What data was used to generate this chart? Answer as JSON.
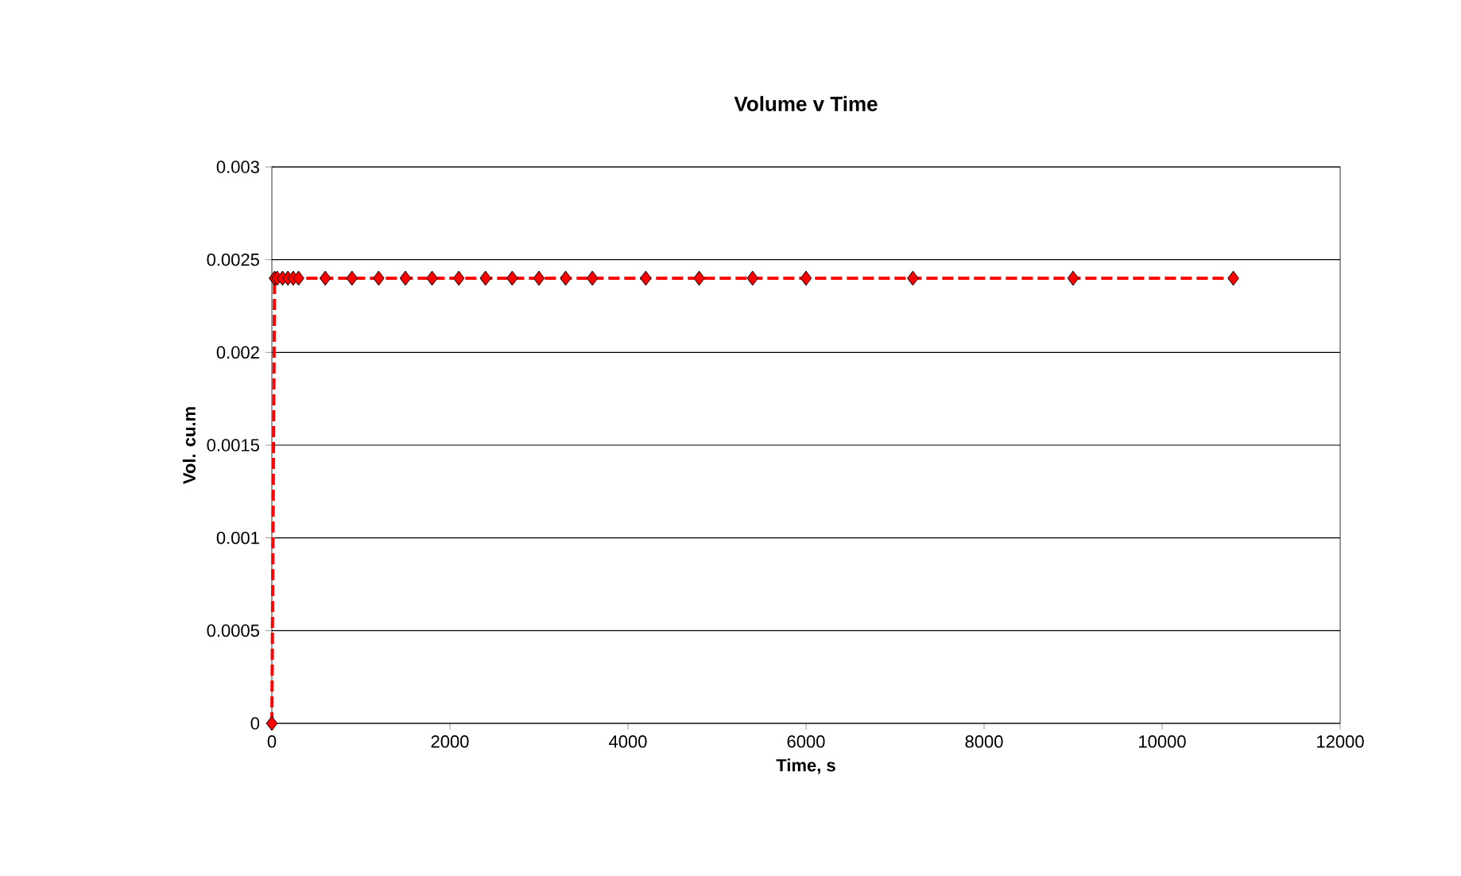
{
  "chart_data": {
    "type": "line",
    "title": "Volume v Time",
    "xlabel": "Time, s",
    "ylabel": "Vol. cu.m",
    "x": [
      0,
      30,
      60,
      120,
      180,
      240,
      300,
      600,
      900,
      1200,
      1500,
      1800,
      2100,
      2400,
      2700,
      3000,
      3300,
      3600,
      4200,
      4800,
      5400,
      6000,
      7200,
      9000,
      10800
    ],
    "series": [
      {
        "color": "#ff0000",
        "values": [
          0,
          0.0024,
          0.0024,
          0.0024,
          0.0024,
          0.0024,
          0.0024,
          0.0024,
          0.0024,
          0.0024,
          0.0024,
          0.0024,
          0.0024,
          0.0024,
          0.0024,
          0.0024,
          0.0024,
          0.0024,
          0.0024,
          0.0024,
          0.0024,
          0.0024,
          0.0024,
          0.0024,
          0.0024
        ]
      }
    ],
    "xlim": [
      0,
      12000
    ],
    "xticks": [
      0,
      2000,
      4000,
      6000,
      8000,
      10000,
      12000
    ],
    "ylim": [
      0,
      0.003
    ],
    "yticks": [
      0,
      0.0005,
      0.001,
      0.0015,
      0.002,
      0.0025,
      0.003
    ],
    "grid": "y",
    "marker": "diamond",
    "line_style": "dashed"
  }
}
